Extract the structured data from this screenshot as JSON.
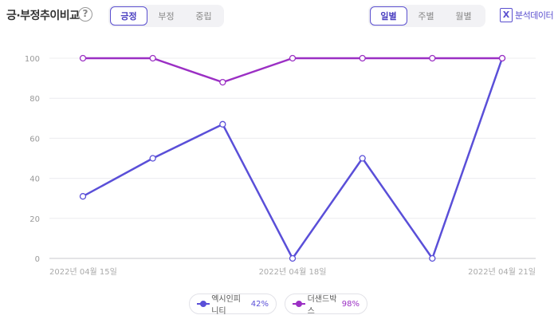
{
  "header": {
    "title": "긍·부정추이비교",
    "help_icon": "?",
    "sentiment_tabs": [
      {
        "label": "긍정",
        "active": true
      },
      {
        "label": "부정",
        "active": false
      },
      {
        "label": "중립",
        "active": false
      }
    ],
    "period_tabs": [
      {
        "label": "일별",
        "active": true
      },
      {
        "label": "주별",
        "active": false
      },
      {
        "label": "월별",
        "active": false
      }
    ],
    "export_label": "분석데이터",
    "export_icon": "X"
  },
  "colors": {
    "accent": "#5a4fcf",
    "series1": "#5a4fd8",
    "series2": "#9b2fc4"
  },
  "chart_data": {
    "type": "line",
    "title": "",
    "xlabel": "",
    "ylabel": "",
    "ylim": [
      0,
      100
    ],
    "yticks": [
      0,
      20,
      40,
      60,
      80,
      100
    ],
    "x": [
      "2022-04-15",
      "2022-04-16",
      "2022-04-17",
      "2022-04-18",
      "2022-04-19",
      "2022-04-20",
      "2022-04-21"
    ],
    "x_tick_labels": [
      {
        "index": 0,
        "label": "2022년 04월 15일"
      },
      {
        "index": 3,
        "label": "2022년 04월 18일"
      },
      {
        "index": 6,
        "label": "2022년 04월 21일"
      }
    ],
    "series": [
      {
        "name": "엑시인피니티",
        "color": "#5a4fd8",
        "values": [
          31,
          50,
          67,
          0,
          50,
          0,
          100
        ]
      },
      {
        "name": "더샌드박스",
        "color": "#9b2fc4",
        "values": [
          100,
          100,
          88,
          100,
          100,
          100,
          100
        ]
      }
    ],
    "grid": true,
    "legend_position": "bottom"
  },
  "legend": [
    {
      "name": "엑시인피니티",
      "percent": "42%"
    },
    {
      "name": "더샌드박스",
      "percent": "98%"
    }
  ]
}
